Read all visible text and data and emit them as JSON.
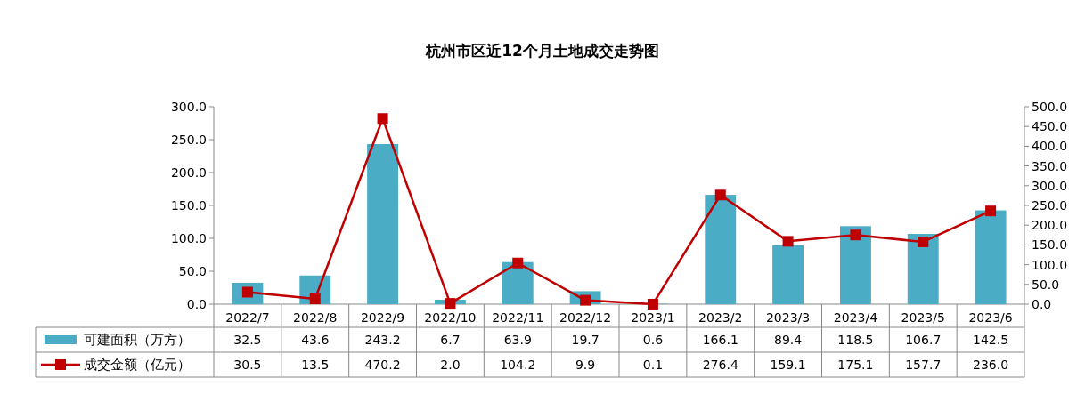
{
  "chart_data": {
    "type": "bar",
    "title": "杭州市区近12个月土地成交走势图",
    "categories": [
      "2022/7",
      "2022/8",
      "2022/9",
      "2022/10",
      "2022/11",
      "2022/12",
      "2023/1",
      "2023/2",
      "2023/3",
      "2023/4",
      "2023/5",
      "2023/6"
    ],
    "series": [
      {
        "name": "可建面积（万方）",
        "color": "#4bacc6",
        "values": [
          32.5,
          43.6,
          243.2,
          6.7,
          63.9,
          19.7,
          0.6,
          166.1,
          89.4,
          118.5,
          106.7,
          142.5
        ],
        "value_labels": [
          "32.5",
          "43.6",
          "243.2",
          "6.7",
          "63.9",
          "19.7",
          "0.6",
          "166.1",
          "89.4",
          "118.5",
          "106.7",
          "142.5"
        ]
      },
      {
        "name": "成交金额（亿元）",
        "type": "line",
        "axis": "y2",
        "color": "#c00000",
        "marker": "square",
        "values": [
          30.5,
          13.5,
          470.2,
          2.0,
          104.2,
          9.9,
          0.1,
          276.4,
          159.1,
          175.1,
          157.7,
          236.0
        ],
        "value_labels": [
          "30.5",
          "13.5",
          "470.2",
          "2.0",
          "104.2",
          "9.9",
          "0.1",
          "276.4",
          "159.1",
          "175.1",
          "157.7",
          "236.0"
        ]
      }
    ],
    "ylim": [
      0,
      300
    ],
    "yticks": [
      {
        "value": 0,
        "label": "0.0"
      },
      {
        "value": 50,
        "label": "50.0"
      },
      {
        "value": 100,
        "label": "100.0"
      },
      {
        "value": 150,
        "label": "150.0"
      },
      {
        "value": 200,
        "label": "200.0"
      },
      {
        "value": 250,
        "label": "250.0"
      },
      {
        "value": 300,
        "label": "300.0"
      }
    ],
    "y2lim": [
      0,
      500
    ],
    "y2ticks": [
      {
        "value": 0,
        "label": "0.0"
      },
      {
        "value": 50,
        "label": "50.0"
      },
      {
        "value": 100,
        "label": "100.0"
      },
      {
        "value": 150,
        "label": "150.0"
      },
      {
        "value": 200,
        "label": "200.0"
      },
      {
        "value": 250,
        "label": "250.0"
      },
      {
        "value": 300,
        "label": "300.0"
      },
      {
        "value": 350,
        "label": "350.0"
      },
      {
        "value": 400,
        "label": "400.0"
      },
      {
        "value": 450,
        "label": "450.0"
      },
      {
        "value": 500,
        "label": "500.0"
      }
    ],
    "legend": "bottom left",
    "grid": false
  }
}
